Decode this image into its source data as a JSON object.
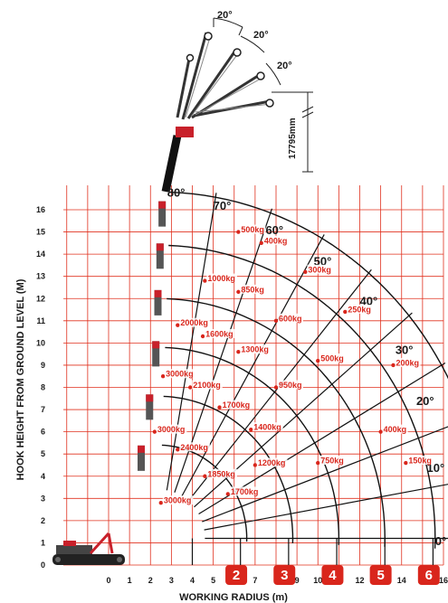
{
  "jib": {
    "angles": [
      "20°",
      "20°",
      "20°"
    ],
    "height_label": "17795mm"
  },
  "boom_angles": [
    "80°",
    "70°",
    "60°",
    "50°",
    "40°",
    "30°",
    "20°",
    "10°",
    "0°"
  ],
  "axes": {
    "xlabel": "WORKING RADIUS (m)",
    "ylabel": "HOOK HEIGHT FROM GROUND LEVEL (M)",
    "x_ticks": [
      "0",
      "1",
      "2",
      "3",
      "4",
      "5",
      "6",
      "7",
      "8",
      "9",
      "10",
      "11",
      "12",
      "13",
      "14",
      "15",
      "16"
    ],
    "y_ticks": [
      "0",
      "1",
      "2",
      "3",
      "4",
      "5",
      "6",
      "7",
      "8",
      "9",
      "10",
      "11",
      "12",
      "13",
      "14",
      "15",
      "16"
    ]
  },
  "load_labels": [
    {
      "text": "500kg",
      "x": 6.2,
      "y": 15.0
    },
    {
      "text": "400kg",
      "x": 7.3,
      "y": 14.5
    },
    {
      "text": "300kg",
      "x": 9.4,
      "y": 13.2
    },
    {
      "text": "250kg",
      "x": 11.3,
      "y": 11.4
    },
    {
      "text": "200kg",
      "x": 13.6,
      "y": 9.0
    },
    {
      "text": "1000kg",
      "x": 4.6,
      "y": 12.8
    },
    {
      "text": "850kg",
      "x": 6.2,
      "y": 12.3
    },
    {
      "text": "600kg",
      "x": 8.0,
      "y": 11.0
    },
    {
      "text": "2000kg",
      "x": 3.3,
      "y": 10.8
    },
    {
      "text": "1600kg",
      "x": 4.5,
      "y": 10.3
    },
    {
      "text": "1300kg",
      "x": 6.2,
      "y": 9.6
    },
    {
      "text": "500kg",
      "x": 10.0,
      "y": 9.2
    },
    {
      "text": "3000kg",
      "x": 2.6,
      "y": 8.5
    },
    {
      "text": "2100kg",
      "x": 3.9,
      "y": 8.0
    },
    {
      "text": "950kg",
      "x": 8.0,
      "y": 8.0
    },
    {
      "text": "1700kg",
      "x": 5.3,
      "y": 7.1
    },
    {
      "text": "3000kg",
      "x": 2.2,
      "y": 6.0
    },
    {
      "text": "1400kg",
      "x": 6.8,
      "y": 6.1
    },
    {
      "text": "400kg",
      "x": 13.0,
      "y": 6.0
    },
    {
      "text": "2400kg",
      "x": 3.3,
      "y": 5.2
    },
    {
      "text": "1200kg",
      "x": 7.0,
      "y": 4.5
    },
    {
      "text": "750kg",
      "x": 10.0,
      "y": 4.6
    },
    {
      "text": "150kg",
      "x": 14.2,
      "y": 4.6
    },
    {
      "text": "1850kg",
      "x": 4.6,
      "y": 4.0
    },
    {
      "text": "1700kg",
      "x": 5.7,
      "y": 3.2
    },
    {
      "text": "3000kg",
      "x": 2.5,
      "y": 2.8
    }
  ],
  "section_badges": [
    "2",
    "3",
    "4",
    "5",
    "6"
  ],
  "colors": {
    "grid": "#e0301e",
    "badge": "#d9261c",
    "label": "#d9261c",
    "curve": "#111111",
    "text": "#1a1a1a"
  }
}
